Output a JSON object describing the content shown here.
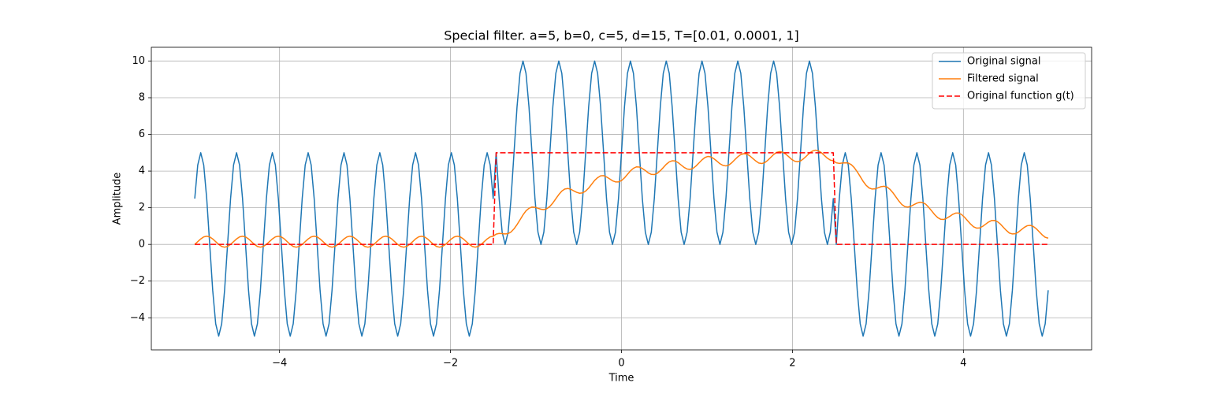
{
  "chart_data": {
    "type": "line",
    "title": "Special filter. a=5, b=0, c=5, d=15, T=[0.01, 0.0001, 1]",
    "x_label": "Time",
    "y_label": "Amplitude",
    "xlim": [
      -5.5,
      5.5
    ],
    "ylim": [
      -5.75,
      10.75
    ],
    "xticks": [
      {
        "value": -4,
        "label": "−4"
      },
      {
        "value": -2,
        "label": "−2"
      },
      0,
      2,
      4
    ],
    "yticks": [
      {
        "value": -4,
        "label": "−4"
      },
      {
        "value": -2,
        "label": "−2"
      },
      0,
      2,
      4,
      6,
      8,
      10
    ],
    "grid": true,
    "legend": "upper right",
    "x": [
      -4.992,
      -4.957,
      -4.922,
      -4.887,
      -4.852,
      -4.817,
      -4.782,
      -4.747,
      -4.712,
      -4.677,
      -4.643,
      -4.608,
      -4.573,
      -4.538,
      -4.503,
      -4.468,
      -4.433,
      -4.398,
      -4.363,
      -4.328,
      -4.294,
      -4.259,
      -4.224,
      -4.189,
      -4.154,
      -4.119,
      -4.084,
      -4.049,
      -4.014,
      -3.979,
      -3.944,
      -3.91,
      -3.875,
      -3.84,
      -3.805,
      -3.77,
      -3.735,
      -3.7,
      -3.665,
      -3.63,
      -3.595,
      -3.56,
      -3.526,
      -3.491,
      -3.456,
      -3.421,
      -3.386,
      -3.351,
      -3.316,
      -3.281,
      -3.246,
      -3.211,
      -3.177,
      -3.142,
      -3.107,
      -3.072,
      -3.037,
      -3.002,
      -2.967,
      -2.932,
      -2.897,
      -2.862,
      -2.827,
      -2.793,
      -2.758,
      -2.723,
      -2.688,
      -2.653,
      -2.618,
      -2.583,
      -2.548,
      -2.513,
      -2.478,
      -2.443,
      -2.409,
      -2.374,
      -2.339,
      -2.304,
      -2.269,
      -2.234,
      -2.199,
      -2.164,
      -2.129,
      -2.094,
      -2.059,
      -2.025,
      -1.99,
      -1.955,
      -1.92,
      -1.885,
      -1.85,
      -1.815,
      -1.78,
      -1.745,
      -1.71,
      -1.676,
      -1.641,
      -1.606,
      -1.571,
      -1.536,
      -1.501,
      -1.466,
      -1.431,
      -1.396,
      -1.361,
      -1.326,
      -1.292,
      -1.257,
      -1.222,
      -1.187,
      -1.152,
      -1.117,
      -1.082,
      -1.047,
      -1.012,
      -0.977,
      -0.942,
      -0.908,
      -0.873,
      -0.838,
      -0.803,
      -0.768,
      -0.733,
      -0.698,
      -0.663,
      -0.628,
      -0.593,
      -0.559,
      -0.524,
      -0.489,
      -0.454,
      -0.419,
      -0.384,
      -0.349,
      -0.314,
      -0.279,
      -0.244,
      -0.209,
      -0.175,
      -0.14,
      -0.105,
      -0.07,
      -0.035,
      0,
      0.035,
      0.07,
      0.105,
      0.14,
      0.175,
      0.209,
      0.244,
      0.279,
      0.314,
      0.349,
      0.384,
      0.419,
      0.454,
      0.489,
      0.524,
      0.559,
      0.593,
      0.628,
      0.663,
      0.698,
      0.733,
      0.768,
      0.803,
      0.838,
      0.873,
      0.908,
      0.942,
      0.977,
      1.012,
      1.047,
      1.082,
      1.117,
      1.152,
      1.187,
      1.222,
      1.257,
      1.292,
      1.326,
      1.361,
      1.396,
      1.431,
      1.466,
      1.501,
      1.536,
      1.571,
      1.606,
      1.641,
      1.676,
      1.71,
      1.745,
      1.78,
      1.815,
      1.85,
      1.885,
      1.92,
      1.955,
      1.99,
      2.025,
      2.059,
      2.094,
      2.129,
      2.164,
      2.199,
      2.234,
      2.269,
      2.304,
      2.339,
      2.374,
      2.409,
      2.443,
      2.478,
      2.513,
      2.548,
      2.583,
      2.618,
      2.653,
      2.688,
      2.723,
      2.758,
      2.793,
      2.827,
      2.862,
      2.897,
      2.932,
      2.967,
      3.002,
      3.037,
      3.072,
      3.107,
      3.142,
      3.177,
      3.211,
      3.246,
      3.281,
      3.316,
      3.351,
      3.386,
      3.421,
      3.456,
      3.491,
      3.526,
      3.56,
      3.595,
      3.63,
      3.665,
      3.7,
      3.735,
      3.77,
      3.805,
      3.84,
      3.875,
      3.91,
      3.944,
      3.979,
      4.014,
      4.049,
      4.084,
      4.119,
      4.154,
      4.189,
      4.224,
      4.259,
      4.294,
      4.328,
      4.363,
      4.398,
      4.433,
      4.468,
      4.503,
      4.538,
      4.573,
      4.608,
      4.643,
      4.677,
      4.712,
      4.747,
      4.782,
      4.817,
      4.852,
      4.887,
      4.922,
      4.957,
      4.992
    ],
    "series": [
      {
        "name": "Original signal",
        "color": "#1f77b4",
        "linestyle": "solid",
        "values": [
          2.5,
          4.33,
          5,
          4.33,
          2.5,
          0,
          -2.5,
          -4.33,
          -5,
          -4.33,
          -2.5,
          0,
          2.5,
          4.33,
          5,
          4.33,
          2.5,
          0,
          -2.5,
          -4.33,
          -5,
          -4.33,
          -2.5,
          0,
          2.5,
          4.33,
          5,
          4.33,
          2.5,
          0,
          -2.5,
          -4.33,
          -5,
          -4.33,
          -2.5,
          0,
          2.5,
          4.33,
          5,
          4.33,
          2.5,
          0,
          -2.5,
          -4.33,
          -5,
          -4.33,
          -2.5,
          0,
          2.5,
          4.33,
          5,
          4.33,
          2.5,
          0,
          -2.5,
          -4.33,
          -5,
          -4.33,
          -2.5,
          0,
          2.5,
          4.33,
          5,
          4.33,
          2.5,
          0,
          -2.5,
          -4.33,
          -5,
          -4.33,
          -2.5,
          0,
          2.5,
          4.33,
          5,
          4.33,
          2.5,
          0,
          -2.5,
          -4.33,
          -5,
          -4.33,
          -2.5,
          0,
          2.5,
          4.33,
          5,
          4.33,
          2.5,
          0,
          -2.5,
          -4.33,
          -5,
          -4.33,
          -2.5,
          0,
          2.5,
          4.33,
          5,
          4.33,
          2.5,
          5,
          2.5,
          0.67,
          0,
          0.67,
          2.5,
          5,
          7.5,
          9.33,
          10,
          9.33,
          7.5,
          5,
          2.5,
          0.67,
          0,
          0.67,
          2.5,
          5,
          7.5,
          9.33,
          10,
          9.33,
          7.5,
          5,
          2.5,
          0.67,
          0,
          0.67,
          2.5,
          5,
          7.5,
          9.33,
          10,
          9.33,
          7.5,
          5,
          2.5,
          0.67,
          0,
          0.67,
          2.5,
          5,
          7.5,
          9.33,
          10,
          9.33,
          7.5,
          5,
          2.5,
          0.67,
          0,
          0.67,
          2.5,
          5,
          7.5,
          9.33,
          10,
          9.33,
          7.5,
          5,
          2.5,
          0.67,
          0,
          0.67,
          2.5,
          5,
          7.5,
          9.33,
          10,
          9.33,
          7.5,
          5,
          2.5,
          0.67,
          0,
          0.67,
          2.5,
          5,
          7.5,
          9.33,
          10,
          9.33,
          7.5,
          5,
          2.5,
          0.67,
          0,
          0.67,
          2.5,
          5,
          7.5,
          9.33,
          10,
          9.33,
          7.5,
          5,
          2.5,
          0.67,
          0,
          0.67,
          2.5,
          5,
          7.5,
          9.33,
          10,
          9.33,
          7.5,
          5,
          2.5,
          0.67,
          0,
          0.67,
          2.5,
          0,
          2.5,
          4.33,
          5,
          4.33,
          2.5,
          0,
          -2.5,
          -4.33,
          -5,
          -4.33,
          -2.5,
          0,
          2.5,
          4.33,
          5,
          4.33,
          2.5,
          0,
          -2.5,
          -4.33,
          -5,
          -4.33,
          -2.5,
          0,
          2.5,
          4.33,
          5,
          4.33,
          2.5,
          0,
          -2.5,
          -4.33,
          -5,
          -4.33,
          -2.5,
          0,
          2.5,
          4.33,
          5,
          4.33,
          2.5,
          0,
          -2.5,
          -4.33,
          -5,
          -4.33,
          -2.5,
          0,
          2.5,
          4.33,
          5,
          4.33,
          2.5,
          0,
          -2.5,
          -4.33,
          -5,
          -4.33,
          -2.5,
          0,
          2.5,
          4.33,
          5,
          4.33,
          2.5,
          0,
          -2.5,
          -4.33,
          -5,
          -4.33,
          -2.5
        ]
      },
      {
        "name": "Filtered signal",
        "color": "#ff7f0e",
        "linestyle": "solid",
        "values": [
          0,
          0.15,
          0.3,
          0.41,
          0.45,
          0.41,
          0.3,
          0.15,
          0,
          -0.11,
          -0.15,
          -0.11,
          0,
          0.15,
          0.3,
          0.41,
          0.45,
          0.41,
          0.3,
          0.15,
          0,
          -0.11,
          -0.15,
          -0.11,
          0,
          0.15,
          0.3,
          0.41,
          0.45,
          0.41,
          0.3,
          0.15,
          0,
          -0.11,
          -0.15,
          -0.11,
          0,
          0.15,
          0.3,
          0.41,
          0.45,
          0.41,
          0.3,
          0.15,
          0,
          -0.11,
          -0.15,
          -0.11,
          0,
          0.15,
          0.3,
          0.41,
          0.45,
          0.41,
          0.3,
          0.15,
          0,
          -0.11,
          -0.15,
          -0.11,
          0,
          0.15,
          0.3,
          0.41,
          0.45,
          0.41,
          0.3,
          0.15,
          0,
          -0.11,
          -0.15,
          -0.11,
          0,
          0.15,
          0.3,
          0.41,
          0.45,
          0.41,
          0.3,
          0.15,
          0,
          -0.11,
          -0.15,
          -0.11,
          0,
          0.15,
          0.3,
          0.41,
          0.45,
          0.41,
          0.3,
          0.15,
          0,
          -0.11,
          -0.15,
          -0.11,
          0,
          0.15,
          0.3,
          0.41,
          0.45,
          0.56,
          0.6,
          0.59,
          0.57,
          0.59,
          0.68,
          0.85,
          1.08,
          1.34,
          1.61,
          1.83,
          1.97,
          2.04,
          2.03,
          1.97,
          1.92,
          1.9,
          1.95,
          2.07,
          2.26,
          2.49,
          2.72,
          2.91,
          3.02,
          3.05,
          3.01,
          2.92,
          2.84,
          2.79,
          2.81,
          2.91,
          3.07,
          3.28,
          3.49,
          3.64,
          3.74,
          3.75,
          3.68,
          3.58,
          3.47,
          3.41,
          3.41,
          3.48,
          3.63,
          3.82,
          4.01,
          4.15,
          4.23,
          4.22,
          4.14,
          4.03,
          3.9,
          3.82,
          3.81,
          3.88,
          4.02,
          4.19,
          4.37,
          4.5,
          4.56,
          4.55,
          4.46,
          4.33,
          4.2,
          4.11,
          4.09,
          4.15,
          4.28,
          4.45,
          4.61,
          4.74,
          4.8,
          4.77,
          4.67,
          4.54,
          4.4,
          4.31,
          4.28,
          4.33,
          4.46,
          4.62,
          4.78,
          4.9,
          4.95,
          4.93,
          4.83,
          4.69,
          4.55,
          4.44,
          4.41,
          4.46,
          4.58,
          4.74,
          4.9,
          5.02,
          5.06,
          5.03,
          4.93,
          4.79,
          4.64,
          4.54,
          4.51,
          4.55,
          4.67,
          4.82,
          4.98,
          5.09,
          5.14,
          5.1,
          5,
          4.85,
          4.7,
          4.6,
          4.56,
          4.45,
          4.42,
          4.44,
          4.45,
          4.44,
          4.35,
          4.19,
          3.96,
          3.7,
          3.44,
          3.22,
          3.08,
          3.02,
          3.03,
          3.09,
          3.15,
          3.17,
          3.13,
          3,
          2.81,
          2.59,
          2.36,
          2.17,
          2.06,
          2.04,
          2.08,
          2.17,
          2.25,
          2.3,
          2.28,
          2.19,
          2.02,
          1.82,
          1.62,
          1.46,
          1.37,
          1.36,
          1.43,
          1.53,
          1.64,
          1.71,
          1.71,
          1.63,
          1.48,
          1.29,
          1.11,
          0.96,
          0.89,
          0.9,
          0.98,
          1.1,
          1.22,
          1.3,
          1.31,
          1.24,
          1.11,
          0.93,
          0.76,
          0.62,
          0.57,
          0.58,
          0.67,
          0.8,
          0.93,
          1.02,
          1.04,
          0.98,
          0.86,
          0.69,
          0.52,
          0.39,
          0.34
        ]
      },
      {
        "name": "Original function g(t)",
        "color": "#ff0000",
        "linestyle": "dashed",
        "values": [
          0,
          0,
          0,
          0,
          0,
          0,
          0,
          0,
          0,
          0,
          0,
          0,
          0,
          0,
          0,
          0,
          0,
          0,
          0,
          0,
          0,
          0,
          0,
          0,
          0,
          0,
          0,
          0,
          0,
          0,
          0,
          0,
          0,
          0,
          0,
          0,
          0,
          0,
          0,
          0,
          0,
          0,
          0,
          0,
          0,
          0,
          0,
          0,
          0,
          0,
          0,
          0,
          0,
          0,
          0,
          0,
          0,
          0,
          0,
          0,
          0,
          0,
          0,
          0,
          0,
          0,
          0,
          0,
          0,
          0,
          0,
          0,
          0,
          0,
          0,
          0,
          0,
          0,
          0,
          0,
          0,
          0,
          0,
          0,
          0,
          0,
          0,
          0,
          0,
          0,
          0,
          0,
          0,
          0,
          0,
          0,
          0,
          0,
          0,
          0,
          0,
          5,
          5,
          5,
          5,
          5,
          5,
          5,
          5,
          5,
          5,
          5,
          5,
          5,
          5,
          5,
          5,
          5,
          5,
          5,
          5,
          5,
          5,
          5,
          5,
          5,
          5,
          5,
          5,
          5,
          5,
          5,
          5,
          5,
          5,
          5,
          5,
          5,
          5,
          5,
          5,
          5,
          5,
          5,
          5,
          5,
          5,
          5,
          5,
          5,
          5,
          5,
          5,
          5,
          5,
          5,
          5,
          5,
          5,
          5,
          5,
          5,
          5,
          5,
          5,
          5,
          5,
          5,
          5,
          5,
          5,
          5,
          5,
          5,
          5,
          5,
          5,
          5,
          5,
          5,
          5,
          5,
          5,
          5,
          5,
          5,
          5,
          5,
          5,
          5,
          5,
          5,
          5,
          5,
          5,
          5,
          5,
          5,
          5,
          5,
          5,
          5,
          5,
          5,
          5,
          5,
          5,
          5,
          5,
          5,
          5,
          5,
          5,
          5,
          5,
          0,
          0,
          0,
          0,
          0,
          0,
          0,
          0,
          0,
          0,
          0,
          0,
          0,
          0,
          0,
          0,
          0,
          0,
          0,
          0,
          0,
          0,
          0,
          0,
          0,
          0,
          0,
          0,
          0,
          0,
          0,
          0,
          0,
          0,
          0,
          0,
          0,
          0,
          0,
          0,
          0,
          0,
          0,
          0,
          0,
          0,
          0,
          0,
          0,
          0,
          0,
          0,
          0,
          0,
          0,
          0,
          0,
          0,
          0,
          0,
          0,
          0,
          0,
          0,
          0,
          0,
          0,
          0,
          0,
          0,
          0,
          0
        ]
      }
    ]
  }
}
